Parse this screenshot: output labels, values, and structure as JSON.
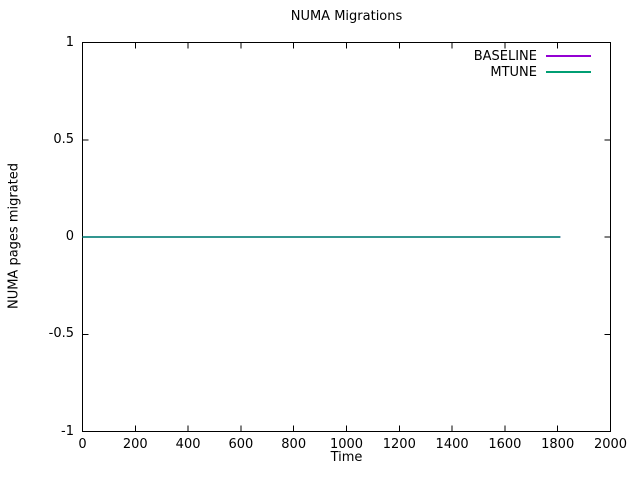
{
  "chart_data": {
    "type": "line",
    "title": "NUMA Migrations",
    "xlabel": "Time",
    "ylabel": "NUMA pages migrated",
    "xlim": [
      0,
      2000
    ],
    "ylim": [
      -1,
      1
    ],
    "xticks": [
      0,
      200,
      400,
      600,
      800,
      1000,
      1200,
      1400,
      1600,
      1800,
      2000
    ],
    "xtick_labels": [
      "0",
      "200",
      "400",
      "600",
      "800",
      "1000",
      "1200",
      "1400",
      "1600",
      "1800",
      "2000"
    ],
    "yticks": [
      -1,
      -0.5,
      0,
      0.5,
      1
    ],
    "ytick_labels": [
      "-1",
      "-0.5",
      "0",
      "0.5",
      "1"
    ],
    "grid": false,
    "legend_position": "top-right-inside",
    "series": [
      {
        "name": "BASELINE",
        "color": "#9400d3",
        "x": [
          0,
          1810
        ],
        "y": [
          0,
          0
        ]
      },
      {
        "name": "MTUNE",
        "color": "#009e73",
        "x": [
          0,
          1810
        ],
        "y": [
          0,
          0
        ]
      }
    ],
    "colors": {
      "background": "#ffffff",
      "axis": "#000000",
      "text": "#000000"
    }
  }
}
